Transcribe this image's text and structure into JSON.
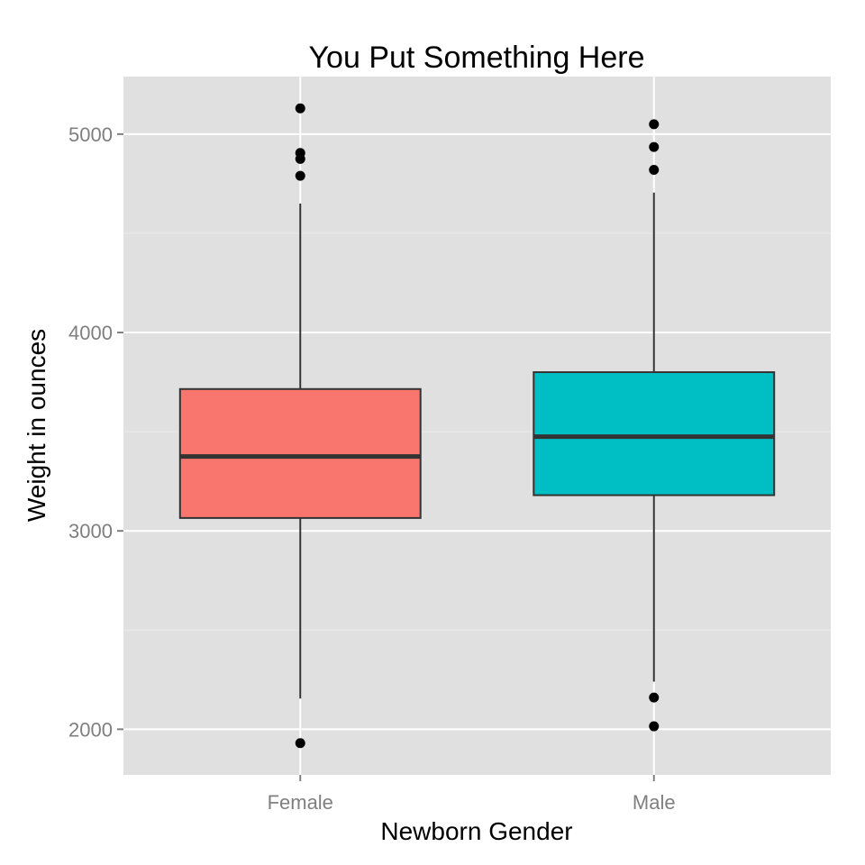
{
  "chart_data": {
    "type": "boxplot",
    "title": "You Put Something Here",
    "xlabel": "Newborn Gender",
    "ylabel": "Weight in ounces",
    "ylim": [
      1770,
      5290
    ],
    "yticks": [
      2000,
      3000,
      4000,
      5000
    ],
    "grid": true,
    "legend": "none",
    "categories": [
      "Female",
      "Male"
    ],
    "boxes": [
      {
        "category": "Female",
        "color": "#F8766D",
        "q1": 3065,
        "median": 3375,
        "q3": 3715,
        "whisker_low": 2155,
        "whisker_high": 4650,
        "outliers": [
          1930,
          4790,
          4875,
          4905,
          5130
        ]
      },
      {
        "category": "Male",
        "color": "#00BFC4",
        "q1": 3180,
        "median": 3475,
        "q3": 3800,
        "whisker_low": 2240,
        "whisker_high": 4705,
        "outliers": [
          2015,
          2160,
          4820,
          4935,
          5050
        ]
      }
    ]
  },
  "colors": {
    "panel_background": "#E0E0E0",
    "grid_major": "#FFFFFF",
    "grid_minor": "#EBEBEB",
    "box_outline": "#333333",
    "outlier": "#000000",
    "tick_text": "#7F7F7F"
  }
}
